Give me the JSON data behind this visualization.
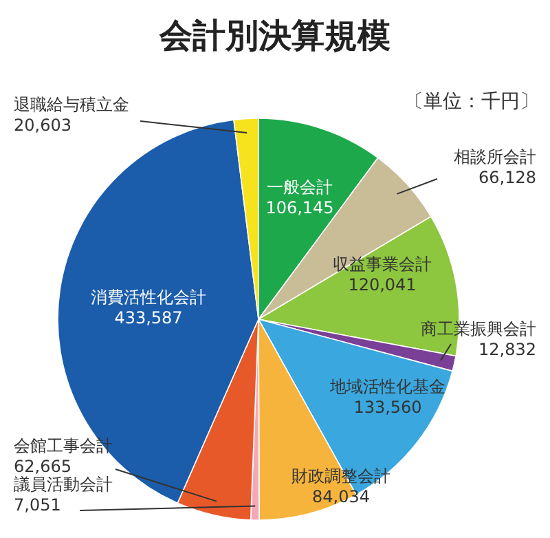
{
  "chart_data": {
    "type": "pie",
    "title": "会計別決算規模",
    "subtitle": "〔単位：千円〕",
    "categories": [
      "一般会計",
      "相談所会計",
      "収益事業会計",
      "商工業振興会計",
      "地域活性化基金",
      "財政調整会計",
      "議員活動会計",
      "会館工事会計",
      "消費活性化会計",
      "退職給与積立金"
    ],
    "values": [
      106145,
      66128,
      120041,
      12832,
      133560,
      84034,
      7051,
      62665,
      433587,
      20603
    ],
    "value_labels": [
      "106,145",
      "66,128",
      "120,041",
      "12,832",
      "133,560",
      "84,034",
      "7,051",
      "62,665",
      "433,587",
      "20,603"
    ],
    "colors": [
      "#1da84c",
      "#c9bd98",
      "#8dc63f",
      "#7a3f96",
      "#3aa7de",
      "#f6b43c",
      "#f3a8b9",
      "#e8592a",
      "#1b5dab",
      "#f7e31d"
    ]
  }
}
